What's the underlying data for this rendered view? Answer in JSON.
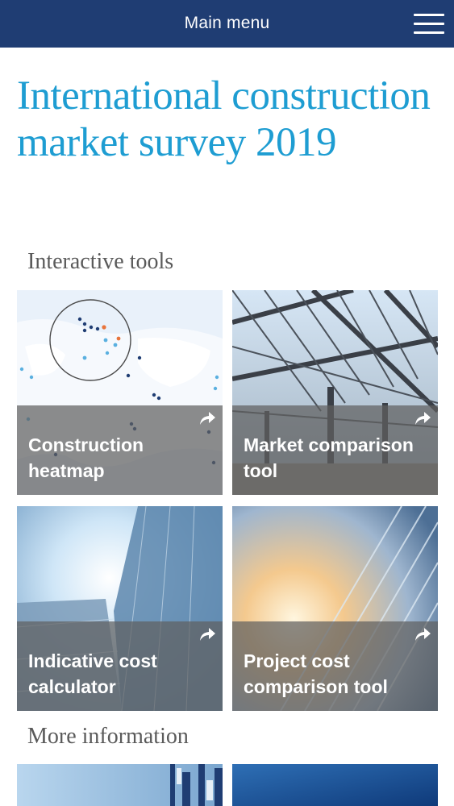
{
  "header": {
    "menu_title": "Main menu"
  },
  "page": {
    "title": "International construction market survey 2019"
  },
  "sections": {
    "interactive_tools": "Interactive tools",
    "more_information": "More information"
  },
  "tools": [
    {
      "label": "Construction heatmap"
    },
    {
      "label": "Market comparison tool"
    },
    {
      "label": "Indicative cost calculator"
    },
    {
      "label": "Project cost comparison tool"
    }
  ],
  "colors": {
    "header_bg": "#1f3d73",
    "title_blue": "#1e9dd2",
    "overlay": "#5f5f5f"
  },
  "icons": {
    "menu": "hamburger-icon",
    "share": "share-arrow-icon"
  }
}
